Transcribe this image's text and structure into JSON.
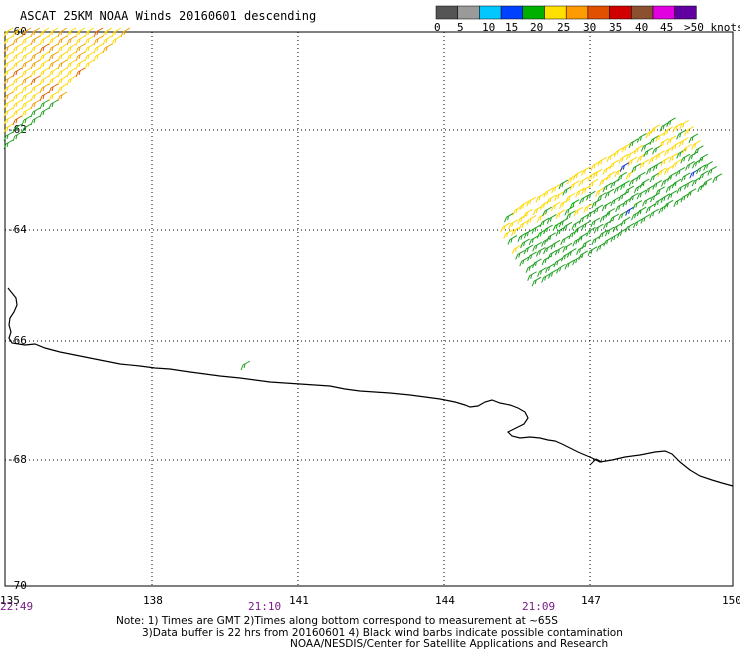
{
  "title": "ASCAT 25KM NOAA Winds 20160601 descending",
  "legend": {
    "labels": [
      "0",
      "5",
      "10",
      "15",
      "20",
      "25",
      "30",
      "35",
      "40",
      "45",
      ">50 knots"
    ],
    "colors": [
      "#555555",
      "#9a9a9a",
      "#00c8ff",
      "#0040ff",
      "#00b000",
      "#ffe000",
      "#ff9a00",
      "#e05000",
      "#d00000",
      "#8a5030",
      "#e000e0",
      "#6000a0"
    ]
  },
  "axes": {
    "lon_ticks": [
      "135",
      "138",
      "141",
      "144",
      "147",
      "150"
    ],
    "lat_ticks": [
      "-60",
      "-62",
      "-64",
      "-66",
      "-68",
      "-70"
    ]
  },
  "times": [
    "22:49",
    "21:10",
    "21:09"
  ],
  "notes": [
    "Note: 1) Times are GMT 2)Times along bottom correspond to measurement at ~65S",
    "3)Data buffer is 22 hrs from 20160601 4) Black wind barbs indicate possible contamination",
    "NOAA/NESDIS/Center for Satellite Applications and Research"
  ]
}
